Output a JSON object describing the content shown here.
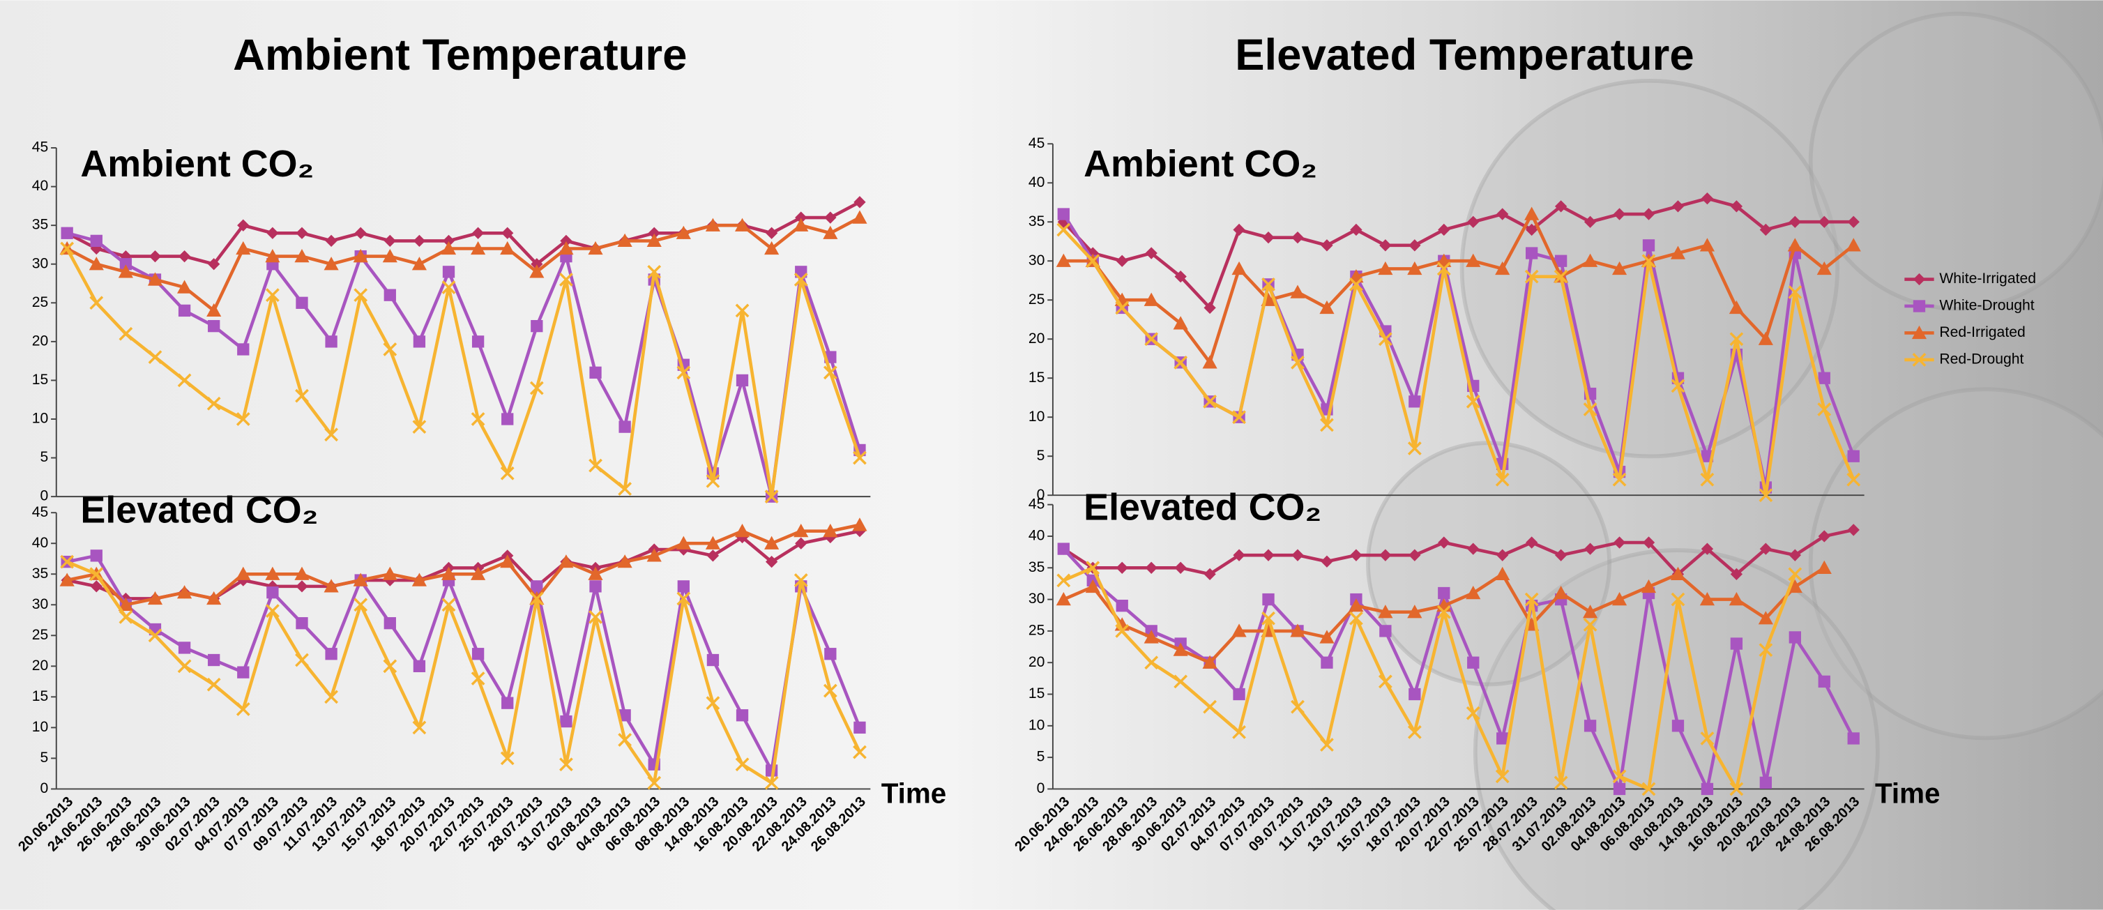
{
  "headings": [
    "Ambient Temperature",
    "Elevated Temperature"
  ],
  "chart_data": [
    {
      "type": "line",
      "subtitle": "Ambient CO₂",
      "ylim": [
        0,
        45
      ],
      "yticks": [
        0,
        5,
        10,
        15,
        20,
        25,
        30,
        35,
        40,
        45
      ],
      "series": [
        {
          "color": "#b8305e",
          "values": [
            34,
            32,
            31,
            31,
            31,
            30,
            35,
            34,
            34,
            33,
            34,
            33,
            33,
            33,
            34,
            34,
            30,
            33,
            32,
            33,
            34,
            34,
            35,
            35,
            34,
            36,
            36,
            38
          ]
        },
        {
          "color": "#a855c0",
          "values": [
            34,
            33,
            30,
            28,
            24,
            22,
            19,
            30,
            25,
            20,
            31,
            26,
            20,
            29,
            20,
            10,
            22,
            31,
            16,
            9,
            28,
            17,
            3,
            15,
            0,
            29,
            18,
            6
          ]
        },
        {
          "color": "#e2672b",
          "values": [
            32,
            30,
            29,
            28,
            27,
            24,
            32,
            31,
            31,
            30,
            31,
            31,
            30,
            32,
            32,
            32,
            29,
            32,
            32,
            33,
            33,
            34,
            35,
            35,
            32,
            35,
            34,
            36
          ]
        },
        {
          "color": "#f7b431",
          "values": [
            32,
            25,
            21,
            18,
            15,
            12,
            10,
            26,
            13,
            8,
            26,
            19,
            9,
            27,
            10,
            3,
            14,
            28,
            4,
            1,
            29,
            16,
            2,
            24,
            0,
            28,
            16,
            5
          ]
        }
      ]
    },
    {
      "type": "line",
      "subtitle": "Ambient CO₂",
      "ylim": [
        0,
        45
      ],
      "yticks": [
        0,
        5,
        10,
        15,
        20,
        25,
        30,
        35,
        40,
        45
      ],
      "legend": "right",
      "series": [
        {
          "name": "White-Irrigated",
          "color": "#b8305e",
          "values": [
            35,
            31,
            30,
            31,
            28,
            24,
            34,
            33,
            33,
            32,
            34,
            32,
            32,
            34,
            35,
            36,
            34,
            37,
            35,
            36,
            36,
            37,
            38,
            37,
            34,
            35,
            35,
            35
          ]
        },
        {
          "name": "White-Drought",
          "color": "#a855c0",
          "values": [
            36,
            30,
            24,
            20,
            17,
            12,
            10,
            27,
            18,
            11,
            28,
            21,
            12,
            30,
            14,
            4,
            31,
            30,
            13,
            3,
            32,
            15,
            5,
            18,
            1,
            31,
            15,
            5
          ]
        },
        {
          "name": "Red-Irrigated",
          "color": "#e2672b",
          "values": [
            30,
            30,
            25,
            25,
            22,
            17,
            29,
            25,
            26,
            24,
            28,
            29,
            29,
            30,
            30,
            29,
            36,
            28,
            30,
            29,
            30,
            31,
            32,
            24,
            20,
            32,
            29,
            32
          ]
        },
        {
          "name": "Red-Drought",
          "color": "#f7b431",
          "values": [
            34,
            30,
            24,
            20,
            17,
            12,
            10,
            27,
            17,
            9,
            27,
            20,
            6,
            29,
            12,
            2,
            28,
            28,
            11,
            2,
            30,
            14,
            2,
            20,
            0,
            26,
            11,
            2
          ]
        }
      ]
    },
    {
      "type": "line",
      "subtitle": "Elevated CO₂",
      "x_label": "Time",
      "ylim": [
        0,
        45
      ],
      "yticks": [
        0,
        5,
        10,
        15,
        20,
        25,
        30,
        35,
        40,
        45
      ],
      "categories": [
        "20.06.2013",
        "24.06.2013",
        "26.06.2013",
        "28.06.2013",
        "30.06.2013",
        "02.07.2013",
        "04.07.2013",
        "07.07.2013",
        "09.07.2013",
        "11.07.2013",
        "13.07.2013",
        "15.07.2013",
        "18.07.2013",
        "20.07.2013",
        "22.07.2013",
        "25.07.2013",
        "28.07.2013",
        "31.07.2013",
        "02.08.2013",
        "04.08.2013",
        "06.08.2013",
        "08.08.2013",
        "14.08.2013",
        "16.08.2013",
        "20.08.2013",
        "22.08.2013",
        "24.08.2013",
        "26.08.2013"
      ],
      "series": [
        {
          "color": "#b8305e",
          "values": [
            34,
            33,
            31,
            31,
            32,
            31,
            34,
            33,
            33,
            33,
            34,
            34,
            34,
            36,
            36,
            38,
            33,
            37,
            36,
            37,
            39,
            39,
            38,
            41,
            37,
            40,
            41,
            42
          ]
        },
        {
          "color": "#a855c0",
          "values": [
            37,
            38,
            30,
            26,
            23,
            21,
            19,
            32,
            27,
            22,
            34,
            27,
            20,
            34,
            22,
            14,
            33,
            11,
            33,
            12,
            4,
            33,
            21,
            12,
            3,
            33,
            22,
            10
          ]
        },
        {
          "color": "#e2672b",
          "values": [
            34,
            35,
            30,
            31,
            32,
            31,
            35,
            35,
            35,
            33,
            34,
            35,
            34,
            35,
            35,
            37,
            31,
            37,
            35,
            37,
            38,
            40,
            40,
            42,
            40,
            42,
            42,
            43
          ]
        },
        {
          "color": "#f7b431",
          "values": [
            37,
            35,
            28,
            25,
            20,
            17,
            13,
            29,
            21,
            15,
            30,
            20,
            10,
            30,
            18,
            5,
            31,
            4,
            28,
            8,
            1,
            31,
            14,
            4,
            1,
            34,
            16,
            6
          ]
        }
      ]
    },
    {
      "type": "line",
      "subtitle": "Elevated CO₂",
      "x_label": "Time",
      "ylim": [
        0,
        45
      ],
      "yticks": [
        0,
        5,
        10,
        15,
        20,
        25,
        30,
        35,
        40,
        45
      ],
      "categories": [
        "20.06.2013",
        "24.06.2013",
        "26.06.2013",
        "28.06.2013",
        "30.06.2013",
        "02.07.2013",
        "04.07.2013",
        "07.07.2013",
        "09.07.2013",
        "11.07.2013",
        "13.07.2013",
        "15.07.2013",
        "18.07.2013",
        "20.07.2013",
        "22.07.2013",
        "25.07.2013",
        "28.07.2013",
        "31.07.2013",
        "02.08.2013",
        "04.08.2013",
        "06.08.2013",
        "08.08.2013",
        "14.08.2013",
        "16.08.2013",
        "20.08.2013",
        "22.08.2013",
        "24.08.2013",
        "26.08.2013"
      ],
      "series": [
        {
          "color": "#b8305e",
          "values": [
            38,
            35,
            35,
            35,
            35,
            34,
            37,
            37,
            37,
            36,
            37,
            37,
            37,
            39,
            38,
            37,
            39,
            37,
            38,
            39,
            39,
            34,
            38,
            34,
            38,
            37,
            40,
            41
          ]
        },
        {
          "color": "#a855c0",
          "values": [
            38,
            33,
            29,
            25,
            23,
            20,
            15,
            30,
            25,
            20,
            30,
            25,
            15,
            31,
            20,
            8,
            29,
            30,
            10,
            0,
            31,
            10,
            0,
            23,
            1,
            24,
            17,
            8
          ]
        },
        {
          "color": "#e2672b",
          "values": [
            30,
            32,
            26,
            24,
            22,
            20,
            25,
            25,
            25,
            24,
            29,
            28,
            28,
            29,
            31,
            34,
            26,
            31,
            28,
            30,
            32,
            34,
            30,
            30,
            27,
            32,
            35,
            null
          ]
        },
        {
          "color": "#f7b431",
          "values": [
            33,
            35,
            25,
            20,
            17,
            13,
            9,
            27,
            13,
            7,
            27,
            17,
            9,
            28,
            12,
            2,
            30,
            1,
            26,
            2,
            0,
            30,
            8,
            0,
            22,
            34,
            null,
            null
          ]
        }
      ]
    }
  ]
}
